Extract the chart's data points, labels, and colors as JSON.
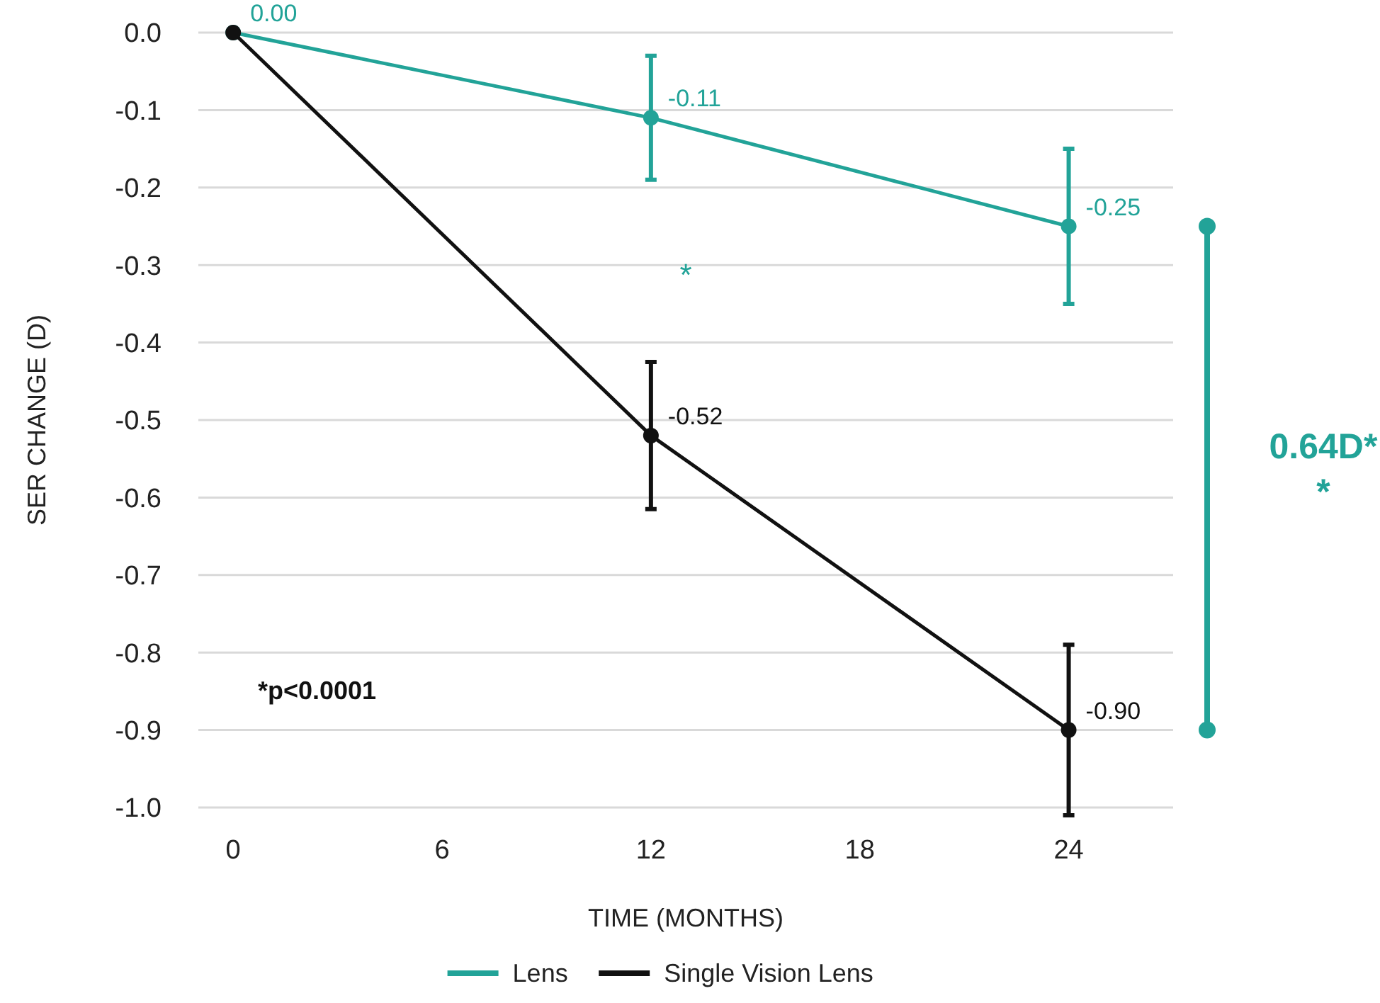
{
  "chart_data": {
    "type": "line",
    "xlabel": "TIME (MONTHS)",
    "ylabel": "SER CHANGE (D)",
    "x": [
      0,
      12,
      24
    ],
    "series": [
      {
        "name": "Lens",
        "color": "#22a398",
        "values": [
          0,
          -0.11,
          -0.25
        ],
        "errors": [
          null,
          0.08,
          0.1
        ],
        "value_labels": [
          "0.00",
          "-0.11",
          "-0.25"
        ]
      },
      {
        "name": "Single Vision Lens",
        "color": "#111111",
        "values": [
          0,
          -0.52,
          -0.9
        ],
        "errors": [
          null,
          0.095,
          0.11
        ],
        "value_labels": [
          null,
          "-0.52",
          "-0.90"
        ]
      }
    ],
    "xlim": [
      -1,
      27
    ],
    "xticks": [
      0,
      6,
      12,
      18,
      24
    ],
    "ylim": [
      -1,
      0
    ],
    "yticks": [
      {
        "value": 0,
        "label": "0.0"
      },
      {
        "value": -0.1,
        "label": "-0.1"
      },
      {
        "value": -0.2,
        "label": "-0.2"
      },
      {
        "value": -0.3,
        "label": "-0.3"
      },
      {
        "value": -0.4,
        "label": "-0.4"
      },
      {
        "value": -0.5,
        "label": "-0.5"
      },
      {
        "value": -0.6,
        "label": "-0.6"
      },
      {
        "value": -0.7,
        "label": "-0.7"
      },
      {
        "value": -0.8,
        "label": "-0.8"
      },
      {
        "value": -0.9,
        "label": "-0.9"
      },
      {
        "value": -1,
        "label": "-1.0"
      }
    ],
    "annotations": [
      "*",
      "*p<0.0001",
      "0.64D*",
      "*"
    ],
    "grid": "y",
    "legend": "bottom",
    "marker": "circle",
    "line_style": "solid"
  }
}
